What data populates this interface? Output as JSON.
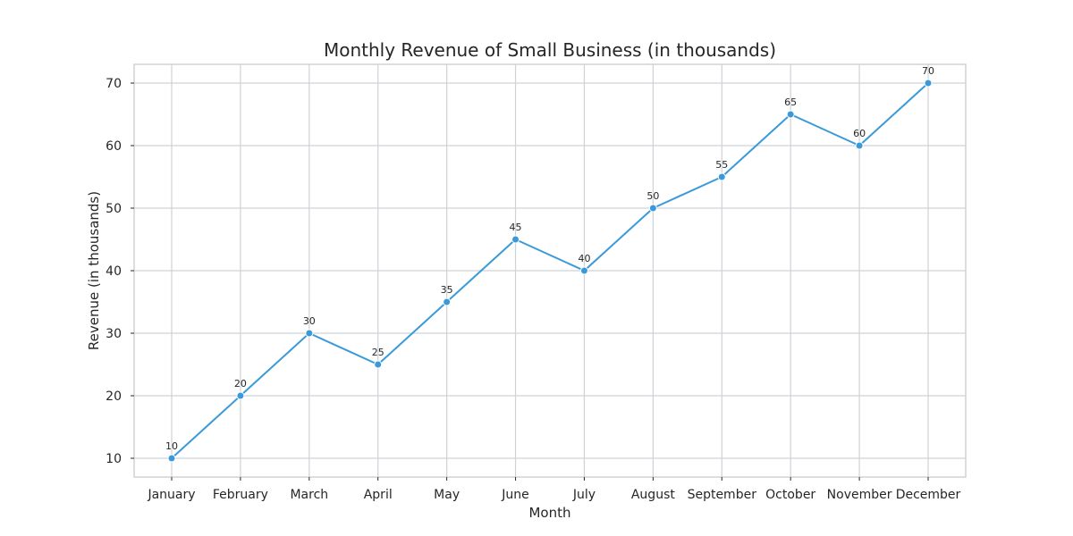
{
  "chart_data": {
    "type": "line",
    "title": "Monthly Revenue of Small Business (in thousands)",
    "xlabel": "Month",
    "ylabel": "Revenue (in thousands)",
    "categories": [
      "January",
      "February",
      "March",
      "April",
      "May",
      "June",
      "July",
      "August",
      "September",
      "October",
      "November",
      "December"
    ],
    "series": [
      {
        "values": [
          10,
          20,
          30,
          25,
          35,
          45,
          40,
          50,
          55,
          65,
          60,
          70
        ],
        "color": "#3a9ad9"
      }
    ],
    "yticks": [
      10,
      20,
      30,
      40,
      50,
      60,
      70
    ],
    "ylim": [
      7,
      73
    ],
    "grid": true,
    "marker": "circle",
    "data_labels": true
  }
}
